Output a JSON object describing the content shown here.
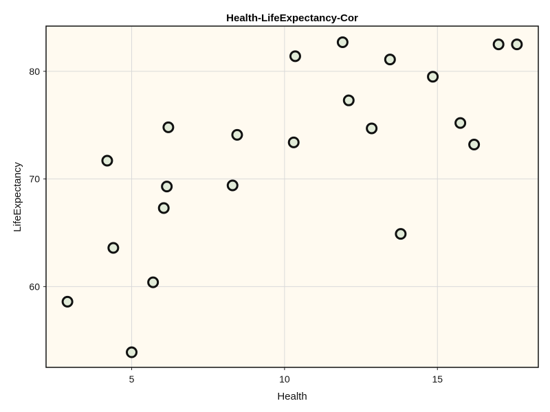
{
  "chart_data": {
    "type": "scatter",
    "title": "Health-LifeExpectancy-Cor",
    "xlabel": "Health",
    "ylabel": "LifeExpectancy",
    "xlim": [
      2.2,
      18.3
    ],
    "ylim": [
      52.5,
      84.2
    ],
    "xticks": [
      5,
      10,
      15
    ],
    "yticks": [
      60,
      70,
      80
    ],
    "grid": true,
    "colors": {
      "plot_background": "#fffaf0",
      "marker_fill": "#e1ebd8",
      "marker_stroke": "#111111",
      "frame": "#111111"
    },
    "points": [
      {
        "x": 2.9,
        "y": 58.6
      },
      {
        "x": 4.2,
        "y": 71.7
      },
      {
        "x": 4.4,
        "y": 63.6
      },
      {
        "x": 5.0,
        "y": 53.9
      },
      {
        "x": 5.7,
        "y": 60.4
      },
      {
        "x": 6.05,
        "y": 67.3
      },
      {
        "x": 6.15,
        "y": 69.3
      },
      {
        "x": 6.2,
        "y": 74.8
      },
      {
        "x": 8.3,
        "y": 69.4
      },
      {
        "x": 8.45,
        "y": 74.1
      },
      {
        "x": 10.3,
        "y": 73.4
      },
      {
        "x": 10.35,
        "y": 81.4
      },
      {
        "x": 11.9,
        "y": 82.7
      },
      {
        "x": 12.1,
        "y": 77.3
      },
      {
        "x": 12.85,
        "y": 74.7
      },
      {
        "x": 13.45,
        "y": 81.1
      },
      {
        "x": 13.8,
        "y": 64.9
      },
      {
        "x": 14.85,
        "y": 79.5
      },
      {
        "x": 15.75,
        "y": 75.2
      },
      {
        "x": 16.2,
        "y": 73.2
      },
      {
        "x": 17.0,
        "y": 82.5
      },
      {
        "x": 17.6,
        "y": 82.5
      }
    ]
  }
}
